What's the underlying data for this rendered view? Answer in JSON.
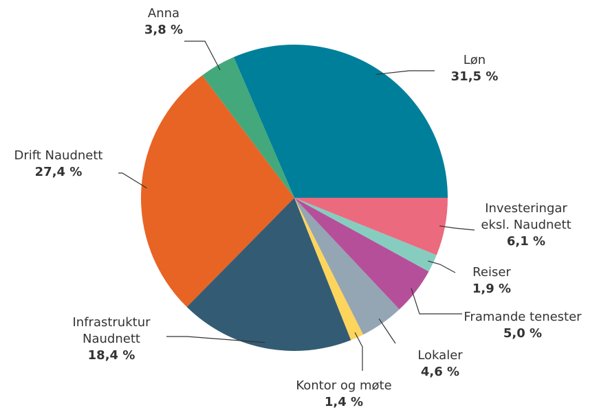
{
  "chart_data": {
    "type": "pie",
    "categories": [
      "Løn",
      "Anna",
      "Drift Naudnett",
      "Infrastruktur\nNaudnett",
      "Kontor og møte",
      "Lokaler",
      "Framande tenester",
      "Reiser",
      "Investeringar\neksl. Naudnett"
    ],
    "values": [
      31.5,
      3.8,
      27.4,
      18.4,
      1.4,
      4.6,
      5.0,
      1.9,
      6.1
    ],
    "value_labels": [
      "31,5 %",
      "3,8 %",
      "27,4 %",
      "18,4 %",
      "1,4 %",
      "4,6 %",
      "5,0 %",
      "1,9 %",
      "6,1 %"
    ],
    "colors": [
      "#007f9a",
      "#43a97c",
      "#e86424",
      "#335c74",
      "#fdd55c",
      "#94a5b4",
      "#b64f99",
      "#86cdc0",
      "#ec6a7e"
    ]
  }
}
